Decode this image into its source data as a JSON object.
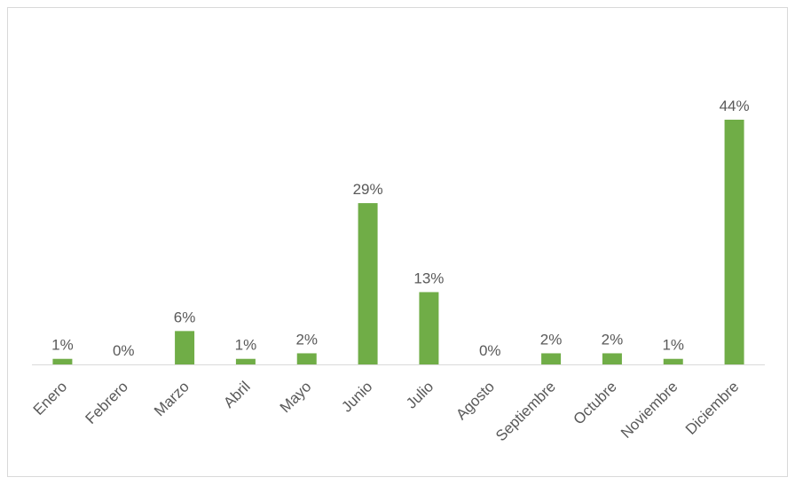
{
  "chart_data": {
    "type": "bar",
    "categories": [
      "Enero",
      "Febrero",
      "Marzo",
      "Abril",
      "Mayo",
      "Junio",
      "Julio",
      "Agosto",
      "Septiembre",
      "Octubre",
      "Noviembre",
      "Diciembre"
    ],
    "values": [
      1,
      0,
      6,
      1,
      2,
      29,
      13,
      0,
      2,
      2,
      1,
      44
    ],
    "value_labels": [
      "1%",
      "0%",
      "6%",
      "1%",
      "2%",
      "29%",
      "13%",
      "0%",
      "2%",
      "2%",
      "1%",
      "44%"
    ],
    "color": "#70ad47"
  }
}
